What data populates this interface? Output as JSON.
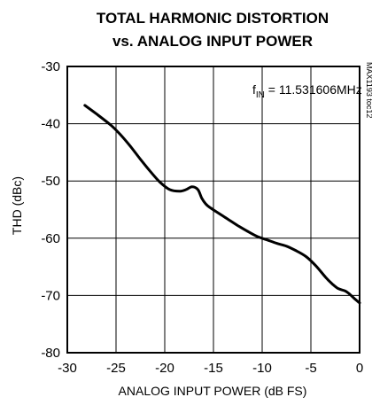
{
  "chart_data": {
    "type": "line",
    "title": "TOTAL HARMONIC DISTORTION",
    "subtitle": "vs. ANALOG INPUT POWER",
    "xlabel": "ANALOG INPUT POWER (dB FS)",
    "ylabel": "THD (dBc)",
    "xlim": [
      -30,
      0
    ],
    "ylim": [
      -80,
      -30
    ],
    "xticks": [
      "-30",
      "-25",
      "-20",
      "-15",
      "-10",
      "-5",
      "0"
    ],
    "yticks": [
      "-30",
      "-40",
      "-50",
      "-60",
      "-70",
      "-80"
    ],
    "grid": true,
    "annotation": {
      "main": "f",
      "sub": "IN",
      "rest": " = 11.531606MHz"
    },
    "code_label": "MAX1193 toc12",
    "series": [
      {
        "x": [
          -28.2,
          -27,
          -25.5,
          -24.5,
          -23.5,
          -22.5,
          -21.5,
          -20.5,
          -19.5,
          -18.5,
          -17.8,
          -17.2,
          -16.6,
          -16.2,
          -15.8,
          -15.4,
          -14.5,
          -13.5,
          -12.5,
          -11.5,
          -10.5,
          -9.5,
          -8.5,
          -7.5,
          -6.5,
          -5.5,
          -4.5,
          -3.5,
          -2.8,
          -2.2,
          -1.5,
          -1.0,
          -0.5,
          0
        ],
        "y": [
          -36.8,
          -38.3,
          -40.3,
          -42.0,
          -44.0,
          -46.2,
          -48.3,
          -50.2,
          -51.5,
          -51.8,
          -51.5,
          -51.0,
          -51.5,
          -53.0,
          -54.0,
          -54.6,
          -55.6,
          -56.7,
          -57.8,
          -58.8,
          -59.7,
          -60.3,
          -60.9,
          -61.4,
          -62.2,
          -63.2,
          -64.8,
          -66.8,
          -68.0,
          -68.8,
          -69.2,
          -69.8,
          -70.6,
          -71.3
        ]
      }
    ]
  }
}
